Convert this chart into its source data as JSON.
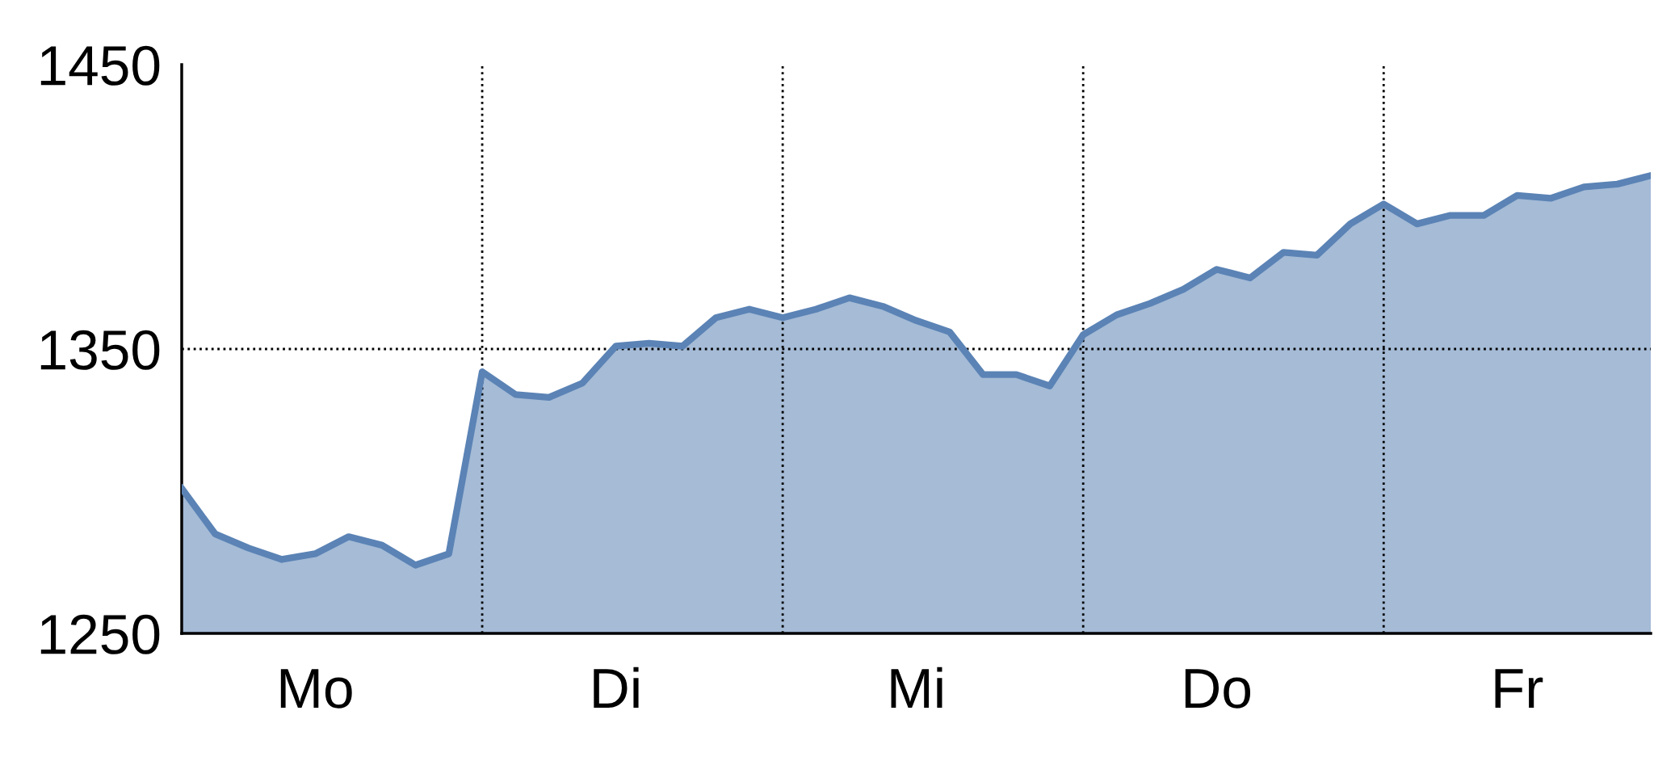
{
  "chart_data": {
    "type": "area",
    "color": "#5b83b5",
    "categories": [
      null,
      null,
      null,
      null,
      "Mo",
      null,
      null,
      null,
      null,
      null,
      null,
      null,
      null,
      "Di",
      null,
      null,
      null,
      null,
      null,
      null,
      null,
      null,
      "Mi",
      null,
      null,
      null,
      null,
      null,
      null,
      null,
      null,
      "Do",
      null,
      null,
      null,
      null,
      null,
      null,
      null,
      null,
      "Fr",
      null,
      null,
      null,
      null
    ],
    "values": [
      1301,
      1285,
      1280,
      1276,
      1278,
      1284,
      1281,
      1274,
      1278,
      1342,
      1334,
      1333,
      1338,
      1351,
      1352,
      1351,
      1361,
      1364,
      1361,
      1364,
      1368,
      1365,
      1360,
      1356,
      1341,
      1341,
      1337,
      1355,
      1362,
      1366,
      1371,
      1378,
      1375,
      1384,
      1383,
      1394,
      1401,
      1394,
      1397,
      1397,
      1404,
      1403,
      1407,
      1408,
      1411
    ],
    "ylim": [
      1250,
      1450
    ],
    "yticks": [
      1250,
      1350,
      1450
    ],
    "grid": true,
    "line_style": "dotted"
  }
}
